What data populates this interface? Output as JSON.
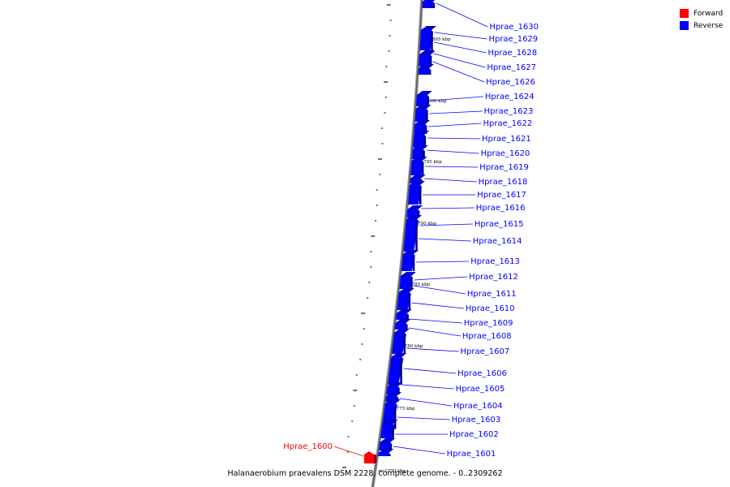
{
  "legend": {
    "forward_label": "Forward",
    "reverse_label": "Reverse",
    "forward_color": "#ff0000",
    "reverse_color": "#0000ff"
  },
  "caption": "Halanaerobium praevalens DSM 2228, complete genome. - 0..2309262",
  "ruler_ticks": [
    "1805 kbp",
    "1800 kbp",
    "1795 kbp",
    "1790 kbp",
    "1785 kbp",
    "1780 kbp",
    "1775 kbp",
    "1770 kbp"
  ],
  "genes": [
    {
      "label": "Hprae_1630",
      "strand": "reverse"
    },
    {
      "label": "Hprae_1629",
      "strand": "reverse"
    },
    {
      "label": "Hprae_1628",
      "strand": "reverse"
    },
    {
      "label": "Hprae_1627",
      "strand": "reverse"
    },
    {
      "label": "Hprae_1626",
      "strand": "reverse"
    },
    {
      "label": "Hprae_1624",
      "strand": "reverse"
    },
    {
      "label": "Hprae_1623",
      "strand": "reverse"
    },
    {
      "label": "Hprae_1622",
      "strand": "reverse"
    },
    {
      "label": "Hprae_1621",
      "strand": "reverse"
    },
    {
      "label": "Hprae_1620",
      "strand": "reverse"
    },
    {
      "label": "Hprae_1619",
      "strand": "reverse"
    },
    {
      "label": "Hprae_1618",
      "strand": "reverse"
    },
    {
      "label": "Hprae_1617",
      "strand": "reverse"
    },
    {
      "label": "Hprae_1616",
      "strand": "reverse"
    },
    {
      "label": "Hprae_1615",
      "strand": "reverse"
    },
    {
      "label": "Hprae_1614",
      "strand": "reverse"
    },
    {
      "label": "Hprae_1613",
      "strand": "reverse"
    },
    {
      "label": "Hprae_1612",
      "strand": "reverse"
    },
    {
      "label": "Hprae_1611",
      "strand": "reverse"
    },
    {
      "label": "Hprae_1610",
      "strand": "reverse"
    },
    {
      "label": "Hprae_1609",
      "strand": "reverse"
    },
    {
      "label": "Hprae_1608",
      "strand": "reverse"
    },
    {
      "label": "Hprae_1607",
      "strand": "reverse"
    },
    {
      "label": "Hprae_1606",
      "strand": "reverse"
    },
    {
      "label": "Hprae_1605",
      "strand": "reverse"
    },
    {
      "label": "Hprae_1604",
      "strand": "reverse"
    },
    {
      "label": "Hprae_1603",
      "strand": "reverse"
    },
    {
      "label": "Hprae_1602",
      "strand": "reverse"
    },
    {
      "label": "Hprae_1601",
      "strand": "reverse"
    },
    {
      "label": "Hprae_1600",
      "strand": "forward"
    }
  ]
}
